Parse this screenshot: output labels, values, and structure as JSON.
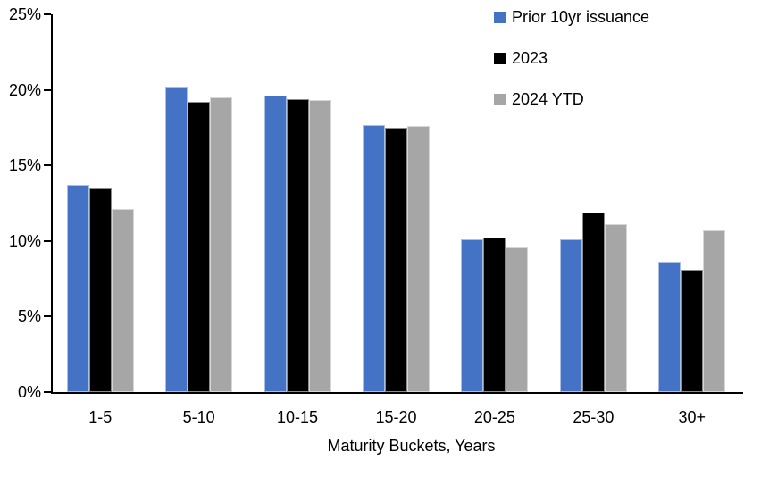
{
  "figure": {
    "background": "#ffffff",
    "axis_color": "#000000",
    "text_color": "#000000"
  },
  "chart_data": {
    "type": "bar",
    "categories": [
      "1-5",
      "5-10",
      "10-15",
      "15-20",
      "20-25",
      "25-30",
      "30+"
    ],
    "series": [
      {
        "name": "Prior 10yr issuance",
        "color": "#4472C4",
        "values": [
          13.7,
          20.2,
          19.6,
          17.7,
          10.1,
          10.1,
          8.6
        ]
      },
      {
        "name": "2023",
        "color": "#000000",
        "values": [
          13.5,
          19.2,
          19.4,
          17.5,
          10.2,
          11.9,
          8.1
        ]
      },
      {
        "name": "2024 YTD",
        "color": "#A6A6A6",
        "values": [
          12.1,
          19.5,
          19.3,
          17.6,
          9.6,
          11.1,
          10.7
        ]
      }
    ],
    "title": "",
    "xlabel": "Maturity Buckets, Years",
    "ylabel": "",
    "ylim": [
      0,
      25
    ],
    "ytick_step": 5,
    "yticks": [
      "0%",
      "5%",
      "10%",
      "15%",
      "20%",
      "25%"
    ],
    "grid": false,
    "legend_position": "top-right"
  }
}
